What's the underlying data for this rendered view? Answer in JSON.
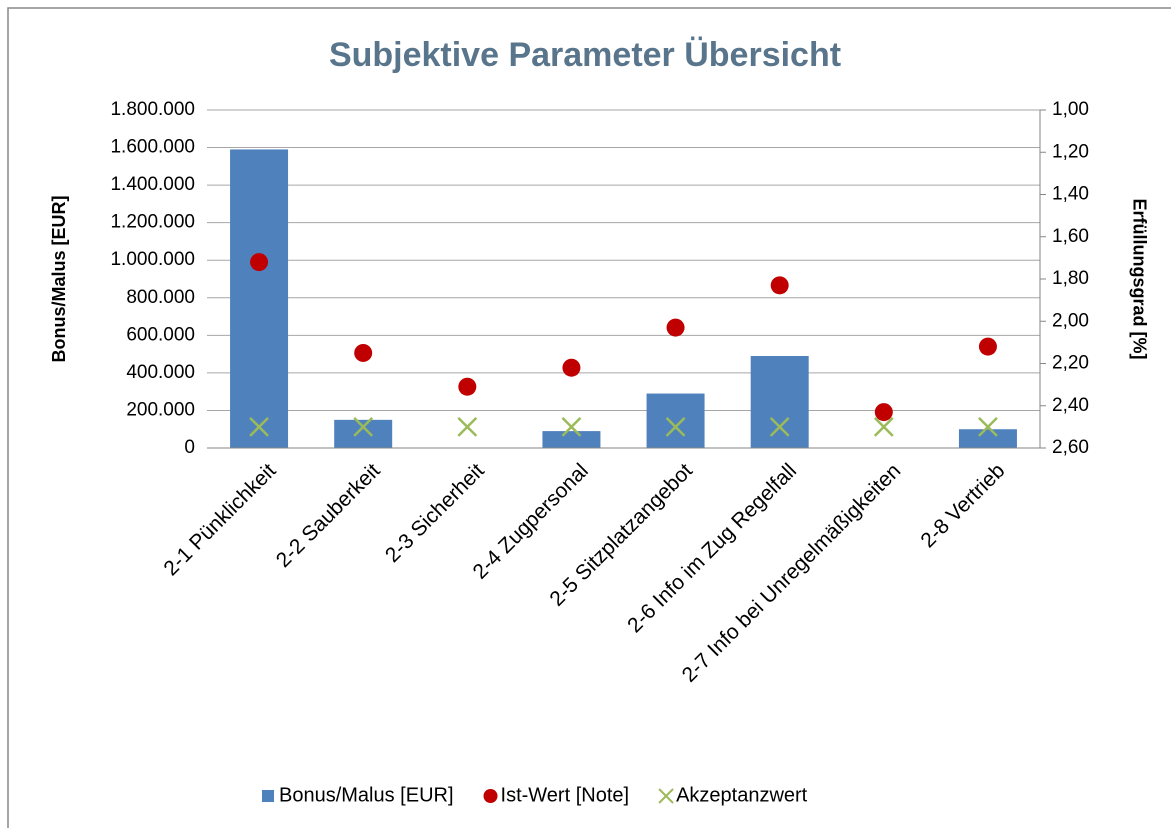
{
  "chart_data": {
    "type": "combo",
    "title": "Subjektive Parameter Übersicht",
    "y_label": "Bonus/Malus [EUR]",
    "y2_label": "Erfüllungsgrad [%]",
    "categories": [
      "2-1 Pünklichkeit",
      "2-2 Sauberkeit",
      "2-3 Sicherheit",
      "2-4 Zugpersonal",
      "2-5 Sitzplatzangebot",
      "2-6 Info im Zug Regelfall",
      "2-7 Info bei Unregelmäßigkeiten",
      "2-8 Vertrieb"
    ],
    "series": [
      {
        "name": "Bonus/Malus [EUR]",
        "type": "bar",
        "axis": "y",
        "color": "#4f81bd",
        "values": [
          1590000,
          150000,
          0,
          90000,
          290000,
          490000,
          0,
          100000
        ]
      },
      {
        "name": "Ist-Wert [Note]",
        "type": "scatter",
        "marker": "circle",
        "axis": "y2",
        "color": "#c00000",
        "values": [
          1.72,
          2.15,
          2.31,
          2.22,
          2.03,
          1.83,
          2.43,
          2.12
        ]
      },
      {
        "name": "Akzeptanzwert",
        "type": "scatter",
        "marker": "x",
        "axis": "y2",
        "color": "#9bbb59",
        "values": [
          2.5,
          2.5,
          2.5,
          2.5,
          2.5,
          2.5,
          2.5,
          2.5
        ]
      }
    ],
    "ylim": [
      0,
      1800000
    ],
    "yticks": [
      0,
      {
        "value": 200000,
        "label": "200.000"
      },
      {
        "value": 400000,
        "label": "400.000"
      },
      {
        "value": 600000,
        "label": "600.000"
      },
      {
        "value": 800000,
        "label": "800.000"
      },
      {
        "value": 1000000,
        "label": "1.000.000"
      },
      {
        "value": 1200000,
        "label": "1.200.000"
      },
      {
        "value": 1400000,
        "label": "1.400.000"
      },
      {
        "value": 1600000,
        "label": "1.600.000"
      },
      {
        "value": 1800000,
        "label": "1.800.000"
      }
    ],
    "y2lim": [
      2.6,
      1.0
    ],
    "y2ticks": [
      {
        "value": 2.6,
        "label": "2,60"
      },
      {
        "value": 2.4,
        "label": "2,40"
      },
      {
        "value": 2.2,
        "label": "2,20"
      },
      {
        "value": 2.0,
        "label": "2,00"
      },
      {
        "value": 1.8,
        "label": "1,80"
      },
      {
        "value": 1.6,
        "label": "1,60"
      },
      {
        "value": 1.4,
        "label": "1,40"
      },
      {
        "value": 1.2,
        "label": "1,20"
      },
      {
        "value": 1.0,
        "label": "1,00"
      }
    ],
    "grid": true,
    "legend": "bottom"
  }
}
